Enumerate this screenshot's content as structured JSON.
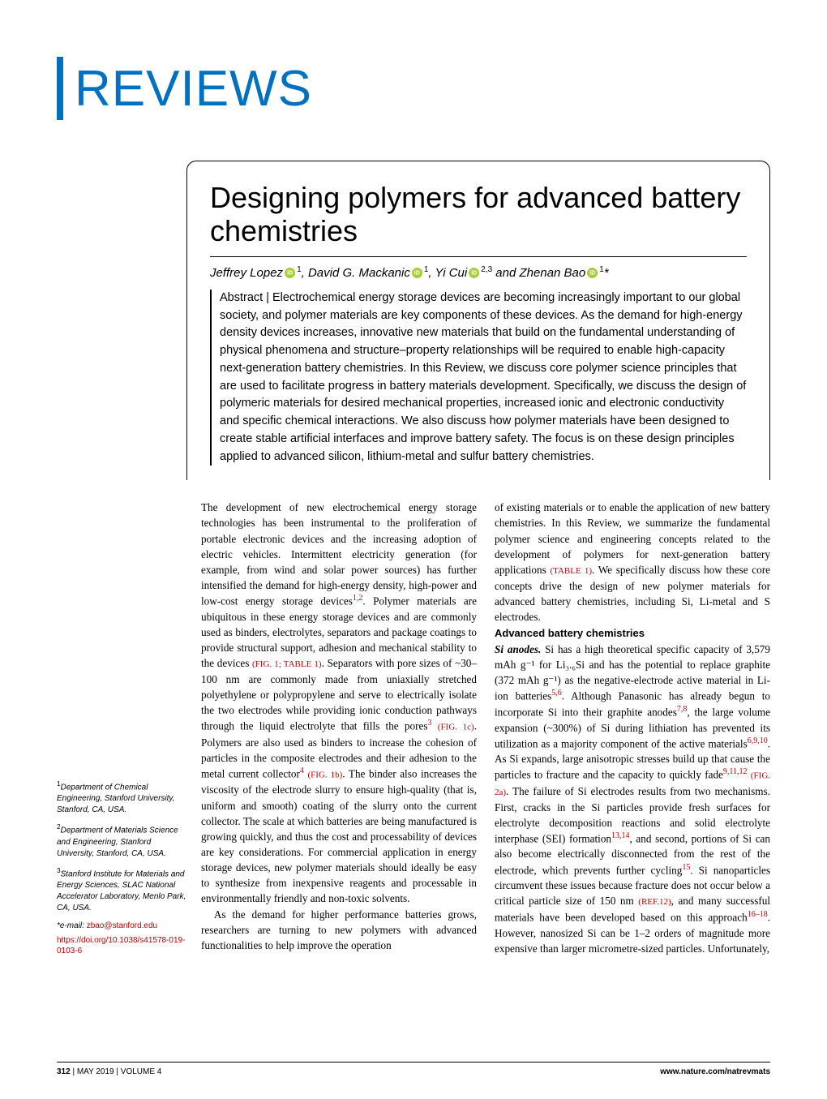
{
  "section_label": "REVIEWS",
  "colors": {
    "accent_blue": "#0070c0",
    "link_red": "#c00000",
    "orcid_green": "#a6ce39",
    "text": "#000000",
    "background": "#ffffff"
  },
  "title": "Designing polymers for advanced battery chemistries",
  "authors": [
    {
      "name": "Jeffrey Lopez",
      "orcid": true,
      "aff": "1"
    },
    {
      "name": "David G. Mackanic",
      "orcid": true,
      "aff": "1"
    },
    {
      "name": "Yi Cui",
      "orcid": true,
      "aff": "2,3"
    },
    {
      "name": "Zhenan Bao",
      "orcid": true,
      "aff": "1",
      "corr": true
    }
  ],
  "abstract_label": "Abstract |",
  "abstract": "Electrochemical energy storage devices are becoming increasingly important to our global society, and polymer materials are key components of these devices. As the demand for high-energy density devices increases, innovative new materials that build on the fundamental understanding of physical phenomena and structure–property relationships will be required to enable high-capacity next-generation battery chemistries. In this Review, we discuss core polymer science principles that are used to facilitate progress in battery materials development. Specifically, we discuss the design of polymeric materials for desired mechanical properties, increased ionic and electronic conductivity and specific chemical interactions. We also discuss how polymer materials have been designed to create stable artificial interfaces and improve battery safety. The focus is on these design principles applied to advanced silicon, lithium-metal and sulfur battery chemistries.",
  "affiliations": [
    {
      "num": "1",
      "text": "Department of Chemical Engineering, Stanford University, Stanford, CA, USA."
    },
    {
      "num": "2",
      "text": "Department of Materials Science and Engineering, Stanford University, Stanford, CA, USA."
    },
    {
      "num": "3",
      "text": "Stanford Institute for Materials and Energy Sciences, SLAC National Accelerator Laboratory, Menlo Park, CA, USA."
    }
  ],
  "corr_label": "*e-mail:",
  "corr_email": "zbao@stanford.edu",
  "doi": "https://doi.org/10.1038/s41578-019-0103-6",
  "body": {
    "p1a": "The development of new electrochemical energy storage technologies has been instrumental to the proliferation of portable electronic devices and the increasing adoption of electric vehicles. Intermittent electricity generation (for example, from wind and solar power sources) has further intensified the demand for high-energy density, high-power and low-cost energy storage devices",
    "p1b": ". Polymer materials are ubiquitous in these energy storage devices and are commonly used as binders, electrolytes, separators and package coatings to provide structural support, adhesion and mechanical stability to the devices ",
    "p1c": ". Separators with pore sizes of ~30–100 nm are commonly made from uniaxially stretched polyethylene or polypropylene and serve to electrically isolate the two electrodes while providing ionic conduction pathways through the liquid electrolyte that fills the pores",
    "p1d": ". Polymers are also used as binders to increase the cohesion of particles in the composite electrodes and their adhesion to the metal current collector",
    "p1e": ". The binder also increases the viscosity of the electrode slurry to ensure high-quality (that is, uniform and smooth) coating of the slurry onto the current collector. The scale at which batteries are being manufactured is growing quickly, and thus the cost and processability of devices are key considerations. For commercial application in energy storage devices, new polymer materials should ideally be easy to synthesize from inexpensive reagents and processable in environmentally friendly and non-toxic solvents.",
    "p2": "As the demand for higher performance batteries grows, researchers are turning to new polymers with advanced functionalities to help improve the operation",
    "p3": "of existing materials or to enable the application of new battery chemistries. In this Review, we summarize the fundamental polymer science and engineering concepts related to the development of polymers for next-generation battery applications ",
    "p3b": ". We specifically discuss how these core concepts drive the design of new polymer materials for advanced battery chemistries, including Si, Li-metal and S electrodes.",
    "sec_heading": "Advanced battery chemistries",
    "si_label": "Si anodes.",
    "p4a": " Si has a high theoretical specific capacity of 3,579 mAh g⁻¹ for Li₃.₆Si and has the potential to replace graphite (372 mAh g⁻¹) as the negative-electrode active material in Li-ion batteries",
    "p4b": ". Although Panasonic has already begun to incorporate Si into their graphite anodes",
    "p4c": ", the large volume expansion (~300%) of Si during lithiation has prevented its utilization as a majority component of the active materials",
    "p4d": ". As Si expands, large anisotropic stresses build up that cause the particles to fracture and the capacity to quickly fade",
    "p4e": ". The failure of Si electrodes results from two mechanisms. First, cracks in the Si particles provide fresh surfaces for electrolyte decomposition reactions and solid electrolyte interphase (SEI) formation",
    "p4f": ", and second, portions of Si can also become electrically disconnected from the rest of the electrode, which prevents further cycling",
    "p4g": ". Si nanoparticles circumvent these issues because fracture does not occur below a critical particle size of 150 nm ",
    "p4h": ", and many successful materials have been developed based on this approach",
    "p4i": ". However, nanosized Si can be 1–2 orders of magnitude more expensive than larger micrometre-sized particles. Unfortunately,"
  },
  "refs": {
    "r1_2": "1,2",
    "fig1_table1": "(FIG. 1; TABLE 1)",
    "r3": "3",
    "fig1c": "(FIG. 1c)",
    "r4": "4",
    "fig1b": "(FIG. 1b)",
    "table1": "(TABLE 1)",
    "r5_6": "5,6",
    "r7_8": "7,8",
    "r6_9_10": "6,9,10",
    "r9_11_12": "9,11,12",
    "fig2a": "(FIG. 2a)",
    "r13_14": "13,14",
    "r15": "15",
    "ref12": "(REF.12)",
    "r16_18": "16–18"
  },
  "footer": {
    "page": "312",
    "issue": "MAY 2019",
    "volume": "VOLUME 4",
    "url": "www.nature.com/natrevmats"
  }
}
